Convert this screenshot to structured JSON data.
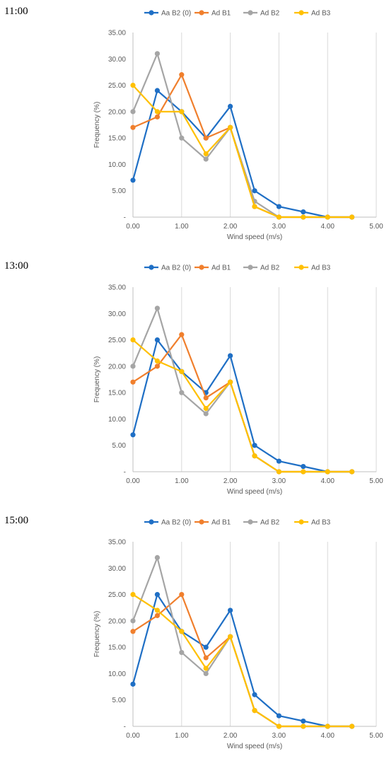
{
  "chart_data": [
    {
      "type": "line",
      "time_label": "11:00",
      "xlabel": "Wind speed (m/s)",
      "ylabel": "Frequency (%)",
      "x": [
        0,
        0.5,
        1,
        1.5,
        2,
        2.5,
        3,
        3.5,
        4,
        4.5
      ],
      "xlim": [
        0,
        5
      ],
      "ylim": [
        0,
        35
      ],
      "x_ticks": [
        "0.00",
        "1.00",
        "2.00",
        "3.00",
        "4.00",
        "5.00"
      ],
      "y_ticks": [
        "-",
        "5.00",
        "10.00",
        "15.00",
        "20.00",
        "25.00",
        "30.00",
        "35.00"
      ],
      "grid": "vertical",
      "legend": "top",
      "series": [
        {
          "name": "Aa B2 (0)",
          "color": "#1F6FC5",
          "values": [
            7,
            24,
            20,
            15,
            21,
            5,
            2,
            1,
            0,
            0
          ]
        },
        {
          "name": "Ad B1",
          "color": "#F07F2D",
          "values": [
            17,
            19,
            27,
            15,
            17,
            2,
            0,
            0,
            0,
            0
          ]
        },
        {
          "name": "Ad B2",
          "color": "#A5A5A5",
          "values": [
            20,
            31,
            15,
            11,
            17,
            3,
            0,
            0,
            0,
            0
          ]
        },
        {
          "name": "Ad B3",
          "color": "#FFC000",
          "values": [
            25,
            20,
            20,
            12,
            17,
            2,
            0,
            0,
            0,
            0
          ]
        }
      ]
    },
    {
      "type": "line",
      "time_label": "13:00",
      "xlabel": "Wind speed (m/s)",
      "ylabel": "Frequency (%)",
      "x": [
        0,
        0.5,
        1,
        1.5,
        2,
        2.5,
        3,
        3.5,
        4,
        4.5
      ],
      "xlim": [
        0,
        5
      ],
      "ylim": [
        0,
        35
      ],
      "x_ticks": [
        "0.00",
        "1.00",
        "2.00",
        "3.00",
        "4.00",
        "5.00"
      ],
      "y_ticks": [
        "-",
        "5.00",
        "10.00",
        "15.00",
        "20.00",
        "25.00",
        "30.00",
        "35.00"
      ],
      "grid": "vertical",
      "legend": "top",
      "series": [
        {
          "name": "Aa B2 (0)",
          "color": "#1F6FC5",
          "values": [
            7,
            25,
            19,
            15,
            22,
            5,
            2,
            1,
            0,
            0
          ]
        },
        {
          "name": "Ad B1",
          "color": "#F07F2D",
          "values": [
            17,
            20,
            26,
            14,
            17,
            3,
            0,
            0,
            0,
            0
          ]
        },
        {
          "name": "Ad B2",
          "color": "#A5A5A5",
          "values": [
            20,
            31,
            15,
            11,
            17,
            3,
            0,
            0,
            0,
            0
          ]
        },
        {
          "name": "Ad B3",
          "color": "#FFC000",
          "values": [
            25,
            21,
            19,
            12,
            17,
            3,
            0,
            0,
            0,
            0
          ]
        }
      ]
    },
    {
      "type": "line",
      "time_label": "15:00",
      "xlabel": "Wind speed (m/s)",
      "ylabel": "Frequency (%)",
      "x": [
        0,
        0.5,
        1,
        1.5,
        2,
        2.5,
        3,
        3.5,
        4,
        4.5
      ],
      "xlim": [
        0,
        5
      ],
      "ylim": [
        0,
        35
      ],
      "x_ticks": [
        "0.00",
        "1.00",
        "2.00",
        "3.00",
        "4.00",
        "5.00"
      ],
      "y_ticks": [
        "-",
        "5.00",
        "10.00",
        "15.00",
        "20.00",
        "25.00",
        "30.00",
        "35.00"
      ],
      "grid": "vertical",
      "legend": "top",
      "series": [
        {
          "name": "Aa B2 (0)",
          "color": "#1F6FC5",
          "values": [
            8,
            25,
            18,
            15,
            22,
            6,
            2,
            1,
            0,
            0
          ]
        },
        {
          "name": "Ad B1",
          "color": "#F07F2D",
          "values": [
            18,
            21,
            25,
            13,
            17,
            3,
            0,
            0,
            0,
            0
          ]
        },
        {
          "name": "Ad B2",
          "color": "#A5A5A5",
          "values": [
            20,
            32,
            14,
            10,
            17,
            3,
            0,
            0,
            0,
            0
          ]
        },
        {
          "name": "Ad B3",
          "color": "#FFC000",
          "values": [
            25,
            22,
            18,
            11,
            17,
            3,
            0,
            0,
            0,
            0
          ]
        }
      ]
    }
  ]
}
